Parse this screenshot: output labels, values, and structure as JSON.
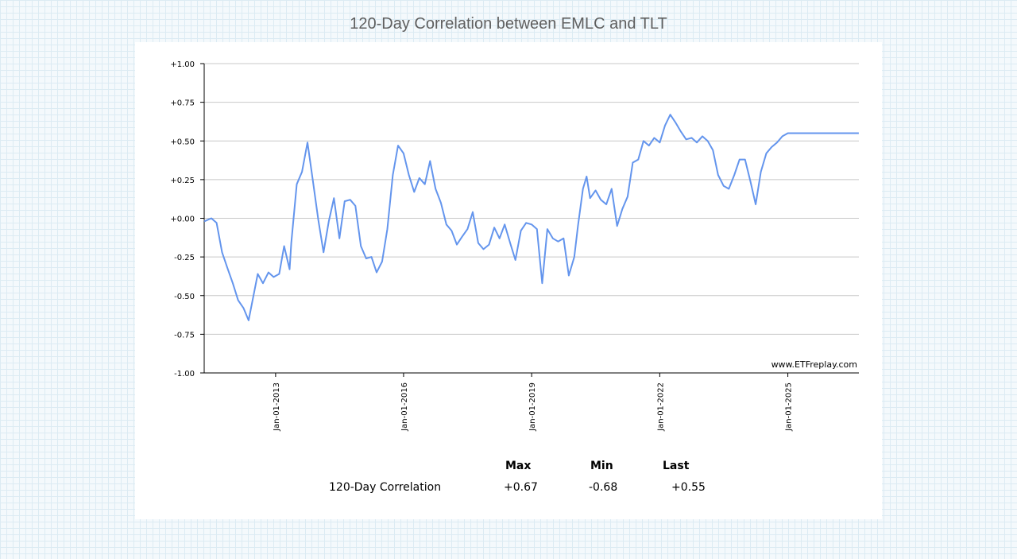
{
  "page": {
    "title": "120-Day Correlation between EMLC and TLT",
    "watermark": "www.ETFreplay.com"
  },
  "stats": {
    "headers": {
      "max": "Max",
      "min": "Min",
      "last": "Last"
    },
    "row_label": "120-Day Correlation",
    "max": "+0.67",
    "min": "-0.68",
    "last": "+0.55"
  },
  "colors": {
    "line": "#6495ed",
    "grid": "#c8c8c8",
    "axis": "#000000"
  },
  "chart_data": {
    "type": "line",
    "title": "120-Day Correlation between EMLC and TLT",
    "xlabel": "",
    "ylabel": "",
    "ylim": [
      -1.0,
      1.0
    ],
    "xlim": [
      "2011-05-01",
      "2026-09-01"
    ],
    "y_ticks": [
      "+1.00",
      "+0.75",
      "+0.50",
      "+0.25",
      "+0.00",
      "-0.25",
      "-0.50",
      "-0.75",
      "-1.00"
    ],
    "y_tick_values": [
      1.0,
      0.75,
      0.5,
      0.25,
      0.0,
      -0.25,
      -0.5,
      -0.75,
      -1.0
    ],
    "x_ticks": [
      "Jan-01-2013",
      "Jan-01-2016",
      "Jan-01-2019",
      "Jan-01-2022",
      "Jan-01-2025"
    ],
    "x_tick_values": [
      "2013-01-01",
      "2016-01-01",
      "2019-01-01",
      "2022-01-01",
      "2025-01-01"
    ],
    "grid": true,
    "series": [
      {
        "x": [
          "2011-05-01",
          "2011-07-01",
          "2011-08-15",
          "2011-10-01",
          "2011-11-15",
          "2012-01-01",
          "2012-02-15",
          "2012-04-01",
          "2012-05-15",
          "2012-07-01",
          "2012-08-01",
          "2012-09-15",
          "2012-11-01",
          "2012-12-15",
          "2013-02-01",
          "2013-03-15",
          "2013-05-01",
          "2013-05-15",
          "2013-07-01",
          "2013-08-15",
          "2013-10-01",
          "2013-11-15",
          "2014-01-01",
          "2014-02-15",
          "2014-04-01",
          "2014-05-15",
          "2014-07-01",
          "2014-08-15",
          "2014-10-01",
          "2014-11-15",
          "2015-01-01",
          "2015-02-15",
          "2015-04-01",
          "2015-05-15",
          "2015-07-01",
          "2015-08-15",
          "2015-10-01",
          "2015-11-15",
          "2016-01-01",
          "2016-02-15",
          "2016-04-01",
          "2016-05-15",
          "2016-07-01",
          "2016-08-15",
          "2016-10-01",
          "2016-11-15",
          "2017-01-01",
          "2017-02-15",
          "2017-04-01",
          "2017-05-15",
          "2017-07-01",
          "2017-08-15",
          "2017-10-01",
          "2017-11-15",
          "2018-01-01",
          "2018-02-15",
          "2018-04-01",
          "2018-05-15",
          "2018-07-01",
          "2018-08-15",
          "2018-10-01",
          "2018-11-15",
          "2019-01-01",
          "2019-02-15",
          "2019-04-01",
          "2019-05-15",
          "2019-07-01",
          "2019-08-15",
          "2019-10-01",
          "2019-11-15",
          "2020-01-01",
          "2020-02-01",
          "2020-03-15",
          "2020-04-15",
          "2020-05-15",
          "2020-07-01",
          "2020-08-15",
          "2020-10-01",
          "2020-11-15",
          "2021-01-01",
          "2021-02-15",
          "2021-04-01",
          "2021-05-15",
          "2021-07-01",
          "2021-08-15",
          "2021-10-01",
          "2021-11-15",
          "2022-01-01",
          "2022-02-15",
          "2022-04-01",
          "2022-05-15",
          "2022-07-01",
          "2022-08-15",
          "2022-10-01",
          "2022-11-15",
          "2023-01-01",
          "2023-02-15",
          "2023-04-01",
          "2023-05-15",
          "2023-07-01",
          "2023-08-15",
          "2023-10-01",
          "2023-11-15",
          "2024-01-01",
          "2024-02-15",
          "2024-04-01",
          "2024-05-15",
          "2024-07-01",
          "2024-08-15",
          "2024-10-01",
          "2024-11-15",
          "2025-01-01",
          "2025-02-15",
          "2025-04-01",
          "2025-05-15",
          "2025-07-01",
          "2025-08-15",
          "2025-10-01",
          "2025-11-15",
          "2026-01-01",
          "2026-02-15",
          "2026-04-01",
          "2026-05-15",
          "2026-07-01",
          "2026-08-31"
        ],
        "y": [
          -0.02,
          0.0,
          -0.03,
          -0.22,
          -0.32,
          -0.42,
          -0.53,
          -0.58,
          -0.66,
          -0.48,
          -0.36,
          -0.42,
          -0.35,
          -0.38,
          -0.36,
          -0.18,
          -0.33,
          -0.16,
          0.22,
          0.3,
          0.49,
          0.25,
          -0.01,
          -0.22,
          -0.02,
          0.13,
          -0.13,
          0.11,
          0.12,
          0.08,
          -0.18,
          -0.26,
          -0.25,
          -0.35,
          -0.28,
          -0.07,
          0.28,
          0.47,
          0.42,
          0.28,
          0.17,
          0.26,
          0.22,
          0.37,
          0.19,
          0.1,
          -0.04,
          -0.08,
          -0.17,
          -0.12,
          -0.07,
          0.04,
          -0.16,
          -0.2,
          -0.17,
          -0.06,
          -0.13,
          -0.04,
          -0.16,
          -0.27,
          -0.08,
          -0.03,
          -0.04,
          -0.07,
          -0.42,
          -0.07,
          -0.13,
          -0.15,
          -0.13,
          -0.37,
          -0.25,
          -0.05,
          0.19,
          0.27,
          0.13,
          0.18,
          0.12,
          0.09,
          0.19,
          -0.05,
          0.06,
          0.14,
          0.36,
          0.38,
          0.5,
          0.47,
          0.52,
          0.49,
          0.6,
          0.67,
          0.62,
          0.56,
          0.51,
          0.52,
          0.49,
          0.53,
          0.5,
          0.44,
          0.28,
          0.21,
          0.19,
          0.28,
          0.38,
          0.38,
          0.24,
          0.09,
          0.3,
          0.42,
          0.46,
          0.49,
          0.53,
          0.55,
          0.55,
          0.55,
          0.55,
          0.55,
          0.55,
          0.55,
          0.55,
          0.55,
          0.55,
          0.55,
          0.55,
          0.55,
          0.55
        ]
      }
    ]
  }
}
